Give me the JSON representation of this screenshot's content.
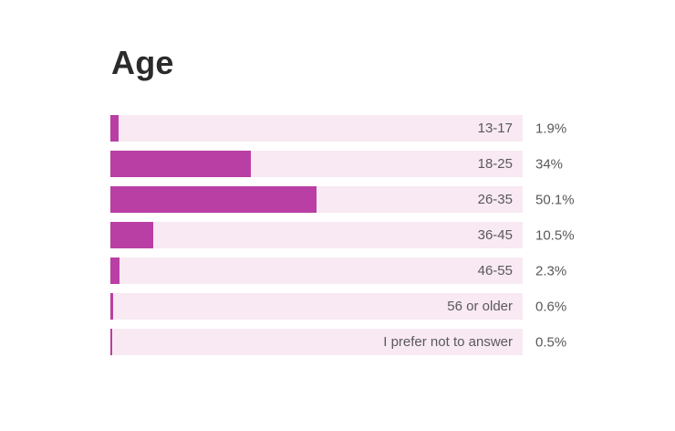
{
  "title": "Age",
  "colors": {
    "background": "#ffffff",
    "bar_fill": "#b93fa4",
    "bar_track": "#f8e9f3",
    "title_text": "#2b2b2b",
    "label_text": "#59595b"
  },
  "chart_data": {
    "type": "bar",
    "orientation": "horizontal",
    "title": "Age",
    "categories": [
      "13-17",
      "18-25",
      "26-35",
      "36-45",
      "46-55",
      "56 or older",
      "I prefer not to answer"
    ],
    "values": [
      1.9,
      34,
      50.1,
      10.5,
      2.3,
      0.6,
      0.5
    ],
    "value_labels": [
      "1.9%",
      "34%",
      "50.1%",
      "10.5%",
      "2.3%",
      "0.6%",
      "0.5%"
    ],
    "xlabel": "",
    "ylabel": "",
    "xlim": [
      0,
      100
    ],
    "grid": false,
    "legend": null,
    "bar_scale": "value is percent of full track width"
  }
}
